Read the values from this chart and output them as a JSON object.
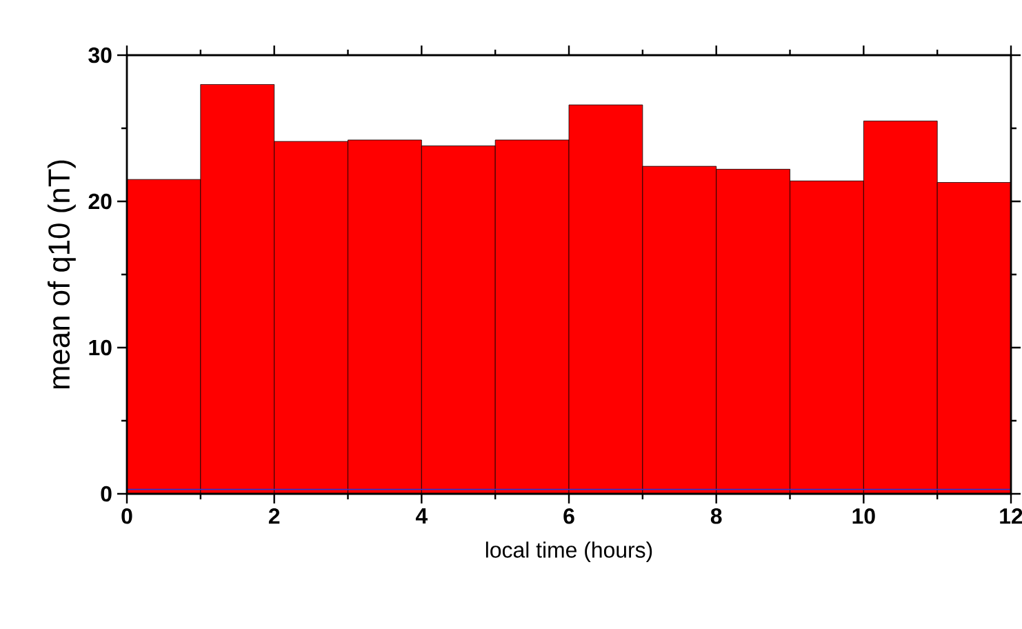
{
  "chart_data": {
    "type": "histogram",
    "xlabel": "local time (hours)",
    "ylabel": "mean of q10 (nT)",
    "bins": [
      0,
      1,
      2,
      3,
      4,
      5,
      6,
      7,
      8,
      9,
      10,
      11,
      12
    ],
    "series": [
      {
        "color": "#ff0000",
        "values": [
          21.5,
          28.0,
          24.1,
          24.2,
          23.8,
          24.2,
          26.6,
          22.4,
          22.2,
          21.4,
          25.5,
          21.3
        ]
      }
    ],
    "ref_lines": [
      {
        "axis": "y",
        "value": 0.3,
        "color": "#3333cc"
      }
    ],
    "xlim": [
      0,
      12
    ],
    "ylim": [
      0,
      30
    ],
    "xticks": [
      0,
      2,
      4,
      6,
      8,
      10,
      12
    ],
    "yticks": [
      0,
      10,
      20,
      30
    ],
    "grid": false
  }
}
